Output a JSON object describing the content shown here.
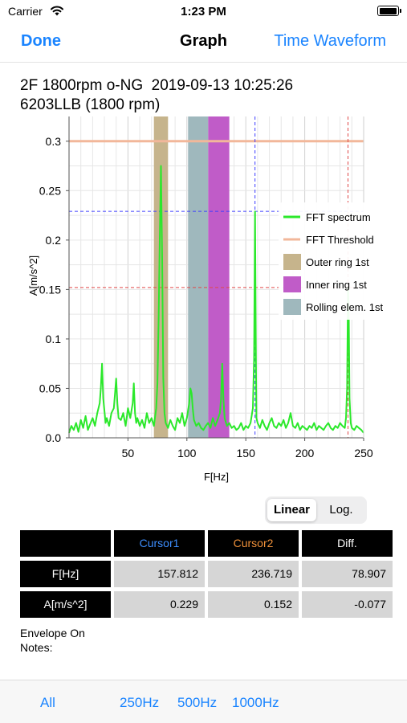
{
  "status": {
    "carrier": "Carrier",
    "time": "1:23 PM"
  },
  "nav": {
    "done": "Done",
    "title": "Graph",
    "time_waveform": "Time Waveform"
  },
  "info": {
    "line1": "2F 1800rpm o-NG  2019-09-13 10:25:26",
    "line2": "6203LLB (1800 rpm)"
  },
  "chart_data": {
    "type": "line",
    "xlabel": "F[Hz]",
    "ylabel": "A[m/s^2]",
    "xlim": [
      0,
      250
    ],
    "ylim": [
      0,
      0.325
    ],
    "x_ticks": [
      50,
      100,
      150,
      200,
      250
    ],
    "y_ticks": [
      0.0,
      0.05,
      0.1,
      0.15,
      0.2,
      0.25,
      0.3
    ],
    "grid": true,
    "legend_position": "right",
    "threshold": 0.3,
    "bands": [
      {
        "name": "Outer ring 1st",
        "x_range": [
          72,
          84
        ],
        "color": "#c6b48c"
      },
      {
        "name": "Inner ring 1st",
        "x_range": [
          118,
          136
        ],
        "color": "#c05cc8"
      },
      {
        "name": "Rolling elem. 1st",
        "x_range": [
          101,
          118
        ],
        "color": "#9fb8bd"
      }
    ],
    "cursors": [
      {
        "name": "Cursor1",
        "x": 157.812,
        "y": 0.229,
        "color": "#3d3dff"
      },
      {
        "name": "Cursor2",
        "x": 236.719,
        "y": 0.152,
        "color": "#e04848"
      }
    ],
    "series": [
      {
        "name": "FFT spectrum",
        "color": "#2be82b",
        "x": [
          0,
          2,
          4,
          6,
          8,
          10,
          12,
          14,
          16,
          18,
          20,
          22,
          24,
          26,
          27,
          28,
          29,
          30,
          31,
          32,
          34,
          36,
          38,
          39,
          40,
          41,
          42,
          44,
          46,
          48,
          50,
          52,
          54,
          55,
          56,
          57,
          58,
          60,
          62,
          64,
          66,
          68,
          70,
          72,
          74,
          75,
          76,
          77,
          78,
          79,
          80,
          81,
          82,
          84,
          86,
          88,
          90,
          92,
          94,
          96,
          98,
          100,
          102,
          103,
          104,
          105,
          106,
          108,
          110,
          112,
          114,
          116,
          118,
          120,
          122,
          124,
          126,
          128,
          129,
          130,
          131,
          132,
          134,
          136,
          138,
          140,
          142,
          144,
          146,
          148,
          150,
          152,
          154,
          156,
          157,
          157.8,
          158.6,
          159,
          160,
          162,
          164,
          166,
          168,
          170,
          172,
          174,
          176,
          178,
          180,
          182,
          184,
          186,
          188,
          190,
          192,
          194,
          196,
          198,
          200,
          202,
          204,
          206,
          208,
          210,
          212,
          214,
          216,
          218,
          220,
          222,
          224,
          226,
          228,
          230,
          232,
          234,
          235,
          236,
          236.7,
          237.4,
          238,
          239,
          240,
          242,
          244,
          246,
          248,
          250
        ],
        "y": [
          0.005,
          0.012,
          0.008,
          0.015,
          0.006,
          0.018,
          0.01,
          0.022,
          0.008,
          0.014,
          0.02,
          0.012,
          0.025,
          0.035,
          0.05,
          0.075,
          0.04,
          0.028,
          0.015,
          0.02,
          0.012,
          0.025,
          0.03,
          0.045,
          0.06,
          0.035,
          0.02,
          0.018,
          0.025,
          0.012,
          0.03,
          0.02,
          0.035,
          0.055,
          0.025,
          0.015,
          0.02,
          0.012,
          0.018,
          0.01,
          0.025,
          0.015,
          0.02,
          0.012,
          0.03,
          0.055,
          0.12,
          0.2,
          0.275,
          0.18,
          0.06,
          0.025,
          0.015,
          0.01,
          0.018,
          0.012,
          0.008,
          0.02,
          0.015,
          0.025,
          0.012,
          0.02,
          0.035,
          0.05,
          0.045,
          0.03,
          0.018,
          0.012,
          0.015,
          0.01,
          0.008,
          0.012,
          0.015,
          0.01,
          0.02,
          0.012,
          0.018,
          0.025,
          0.04,
          0.075,
          0.04,
          0.02,
          0.012,
          0.015,
          0.01,
          0.012,
          0.008,
          0.01,
          0.015,
          0.008,
          0.012,
          0.01,
          0.015,
          0.03,
          0.08,
          0.229,
          0.08,
          0.02,
          0.015,
          0.01,
          0.018,
          0.012,
          0.008,
          0.015,
          0.02,
          0.012,
          0.01,
          0.015,
          0.012,
          0.018,
          0.01,
          0.015,
          0.025,
          0.012,
          0.01,
          0.015,
          0.008,
          0.012,
          0.01,
          0.008,
          0.012,
          0.01,
          0.015,
          0.008,
          0.012,
          0.01,
          0.008,
          0.012,
          0.015,
          0.01,
          0.008,
          0.012,
          0.01,
          0.015,
          0.012,
          0.01,
          0.02,
          0.05,
          0.152,
          0.12,
          0.04,
          0.015,
          0.01,
          0.008,
          0.012,
          0.01,
          0.008,
          0.005
        ]
      },
      {
        "name": "FFT Threshold",
        "color": "#f2b79a"
      }
    ]
  },
  "scale_toggle": {
    "linear": "Linear",
    "log": "Log."
  },
  "table": {
    "headers": [
      "",
      "Cursor1",
      "Cursor2",
      "Diff."
    ],
    "header_colors": [
      "#ffffff",
      "#3d8eff",
      "#f0913a",
      "#ffffff"
    ],
    "rows": [
      {
        "label": "F[Hz]",
        "values": [
          "157.812",
          "236.719",
          "78.907"
        ]
      },
      {
        "label": "A[m/s^2]",
        "values": [
          "0.229",
          "0.152",
          "-0.077"
        ]
      }
    ]
  },
  "envelope": "Envelope On",
  "notes": "Notes:",
  "ranges": [
    "All",
    "250Hz",
    "500Hz",
    "1000Hz"
  ]
}
